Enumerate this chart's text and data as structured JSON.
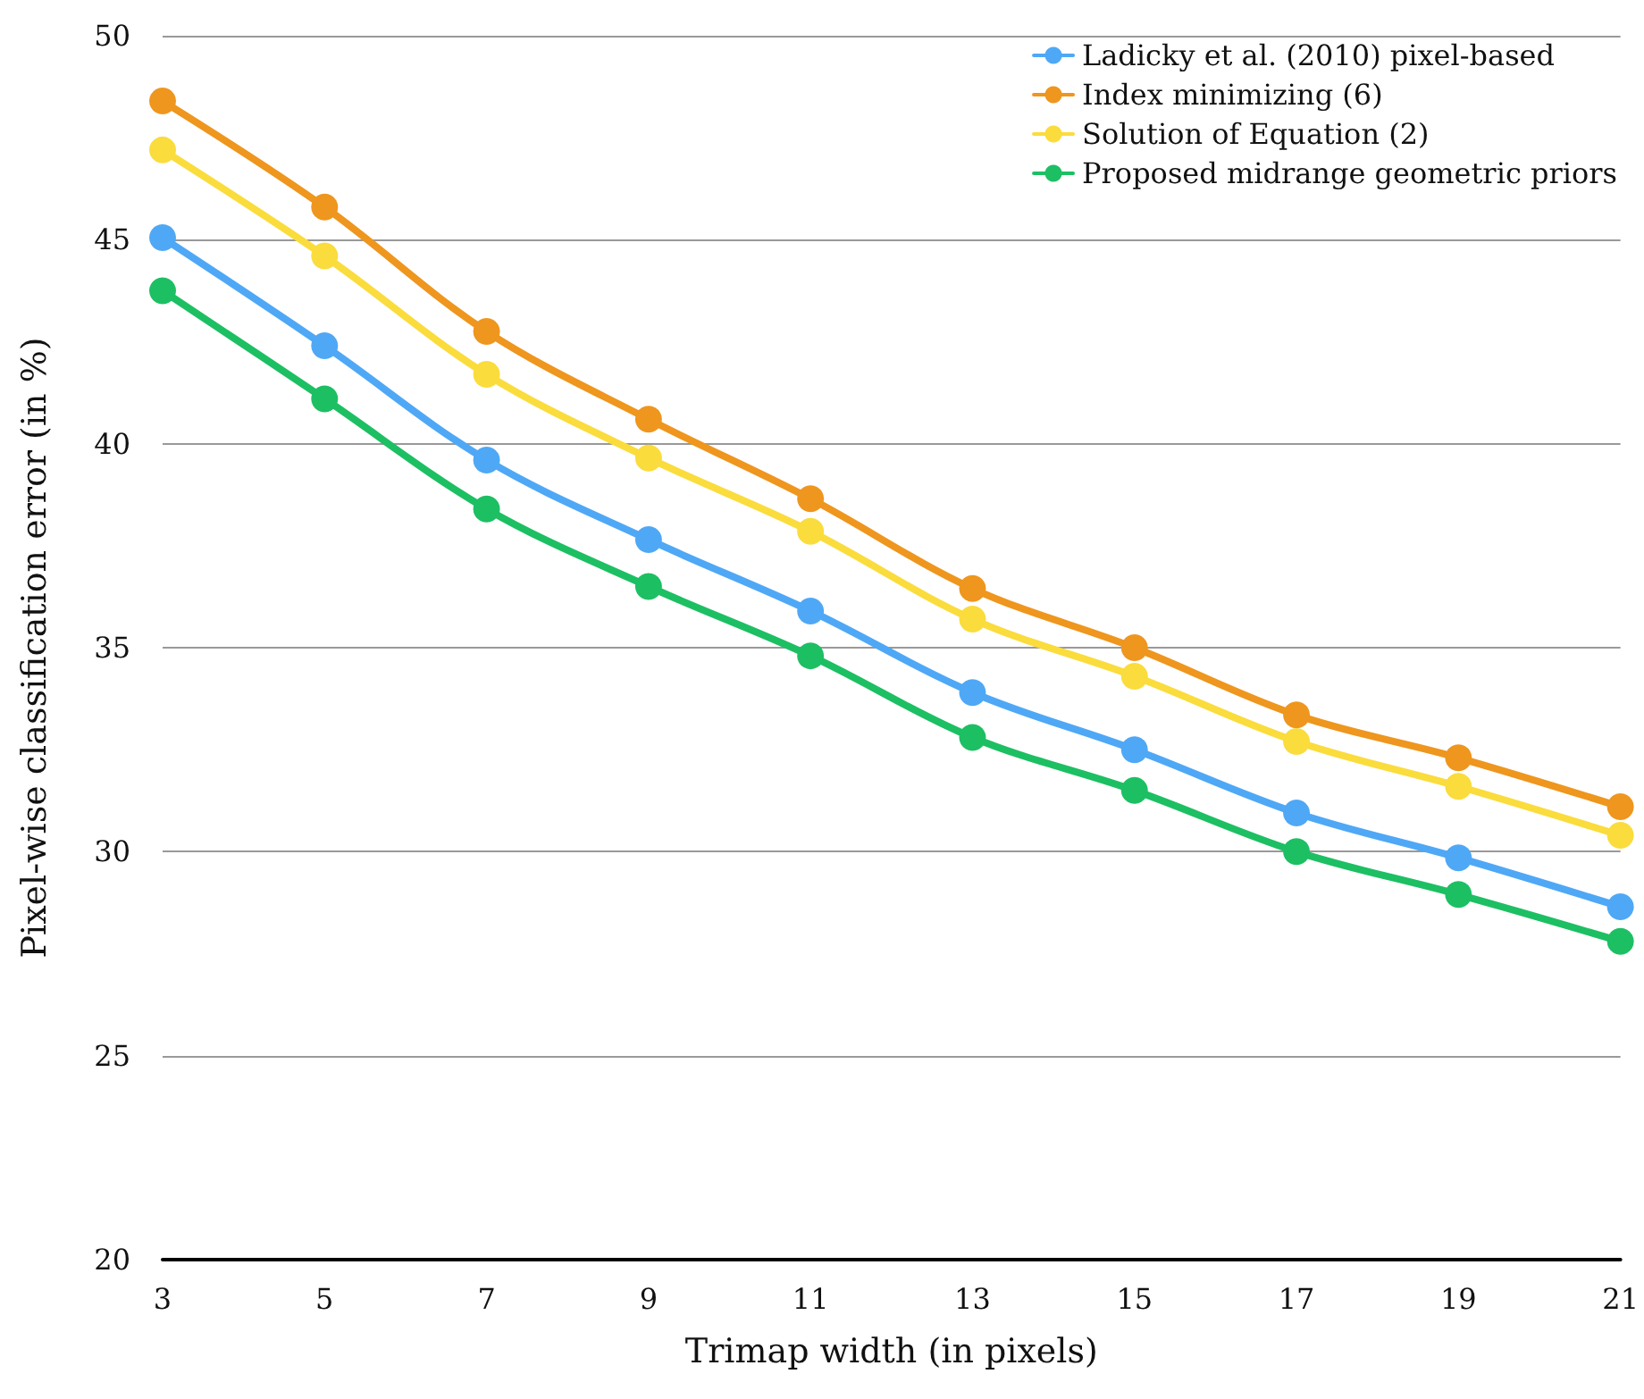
{
  "chart_data": {
    "type": "line",
    "xlabel": "Trimap width (in pixels)",
    "ylabel": "Pixel-wise classification error (in %)",
    "x": [
      3,
      5,
      7,
      9,
      11,
      13,
      15,
      17,
      19,
      21
    ],
    "xlim": [
      3,
      21
    ],
    "xticks": [
      3,
      5,
      7,
      9,
      11,
      13,
      15,
      17,
      19,
      21
    ],
    "ylim": [
      20,
      50
    ],
    "yticks": [
      20,
      25,
      30,
      35,
      40,
      45,
      50
    ],
    "grid": "y",
    "legend": "top right",
    "marker": "circle",
    "line_style": "solid",
    "series": [
      {
        "name": "Ladicky et al. (2010) pixel-based",
        "color": "#4fa8f5",
        "values": [
          45.05,
          42.4,
          39.6,
          37.65,
          35.9,
          33.9,
          32.5,
          30.95,
          29.85,
          28.65
        ]
      },
      {
        "name": "Index minimizing (6)",
        "color": "#ee961e",
        "values": [
          48.4,
          45.8,
          42.75,
          40.6,
          38.65,
          36.45,
          35.0,
          33.35,
          32.3,
          31.1
        ]
      },
      {
        "name": "Solution of Equation (2)",
        "color": "#fadc3c",
        "values": [
          47.2,
          44.6,
          41.7,
          39.65,
          37.85,
          35.7,
          34.3,
          32.7,
          31.6,
          30.4
        ]
      },
      {
        "name": "Proposed midrange geometric priors",
        "color": "#1dbf63",
        "values": [
          43.75,
          41.1,
          38.4,
          36.5,
          34.8,
          32.8,
          31.5,
          30.0,
          28.95,
          27.8
        ]
      }
    ]
  }
}
